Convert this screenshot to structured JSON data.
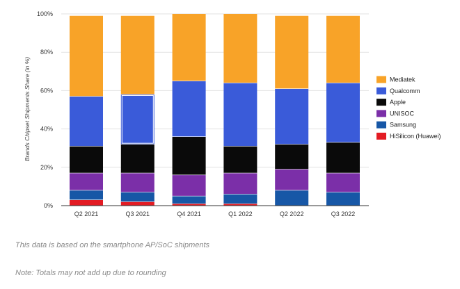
{
  "chart_data": {
    "type": "bar",
    "stacked": true,
    "categories": [
      "Q2 2021",
      "Q3 2021",
      "Q4 2021",
      "Q1 2022",
      "Q2 2022",
      "Q3 2022"
    ],
    "ylabel": "Brands Chipset Shipments Share (in %)",
    "ylim": [
      0,
      100
    ],
    "yticks": [
      "0%",
      "20%",
      "40%",
      "60%",
      "80%",
      "100%"
    ],
    "grid": true,
    "legend_position": "right",
    "series": [
      {
        "name": "HiSilicon (Huawei)",
        "color": "#e31b23",
        "values": [
          3,
          2,
          1,
          1,
          0,
          0
        ]
      },
      {
        "name": "Samsung",
        "color": "#1757a6",
        "values": [
          5,
          5,
          4,
          5,
          8,
          7
        ]
      },
      {
        "name": "UNISOC",
        "color": "#7b2fa8",
        "values": [
          9,
          10,
          11,
          11,
          11,
          10
        ]
      },
      {
        "name": "Apple",
        "color": "#0a0a0a",
        "values": [
          14,
          15,
          20,
          14,
          13,
          16
        ]
      },
      {
        "name": "Qualcomm",
        "color": "#3a5bd9",
        "values": [
          26,
          26,
          29,
          33,
          29,
          31
        ]
      },
      {
        "name": "Mediatek",
        "color": "#f8a328",
        "values": [
          42,
          41,
          35,
          36,
          38,
          35
        ]
      }
    ],
    "legend_order": [
      "Mediatek",
      "Qualcomm",
      "Apple",
      "UNISOC",
      "Samsung",
      "HiSilicon (Huawei)"
    ]
  },
  "notes": {
    "line1": "This data is based on the smartphone AP/SoC shipments",
    "line2": "Note: Totals may not add up due to rounding"
  }
}
